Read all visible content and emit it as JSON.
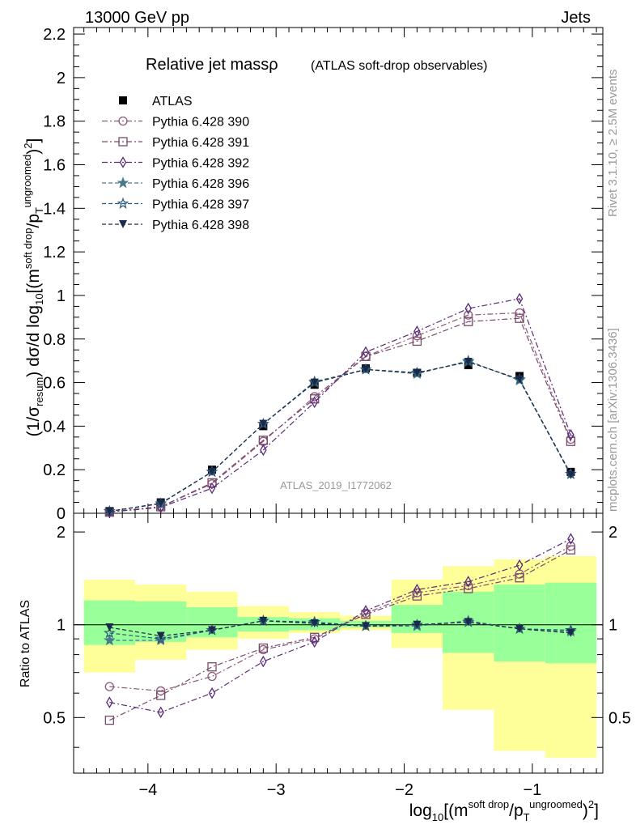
{
  "header": {
    "energy": "13000 GeV pp",
    "process": "Jets"
  },
  "side_labels": {
    "rivet": "Rivet 3.1.10, ≥ 2.5M events",
    "mcplots": "mcplots.cern.ch [arXiv:1306.3436]"
  },
  "analysis_id": "ATLAS_2019_I1772062",
  "chart_data": {
    "type": "line",
    "title": "Relative jet massρ",
    "subtitle": "(ATLAS soft-drop observables)",
    "xlim": [
      -4.58,
      -0.45
    ],
    "ylim": [
      0,
      2.23
    ],
    "ratio_ylim": [
      0.33,
      2.3
    ],
    "x_ticks": [
      -4,
      -3,
      -2,
      -1
    ],
    "x_tick_labels": [
      "−4",
      "−3",
      "−2",
      "−1"
    ],
    "y_ticks": [
      0,
      0.2,
      0.4,
      0.6,
      0.8,
      1,
      1.2,
      1.4,
      1.6,
      1.8,
      2,
      2.2
    ],
    "y_tick_labels": [
      "0",
      "0.2",
      "0.4",
      "0.6",
      "0.8",
      "1",
      "1.2",
      "1.4",
      "1.6",
      "1.8",
      "2",
      "2.2"
    ],
    "ratio_ticks": [
      0.5,
      1,
      2
    ],
    "ratio_tick_labels": [
      "0.5",
      "1",
      "2"
    ],
    "ratio_ylabel": "Ratio to ATLAS",
    "x": [
      -4.3,
      -3.9,
      -3.5,
      -3.1,
      -2.7,
      -2.3,
      -1.9,
      -1.5,
      -1.1,
      -0.7
    ],
    "bin_edges": [
      -4.5,
      -4.1,
      -3.7,
      -3.3,
      -2.9,
      -2.5,
      -2.1,
      -1.7,
      -1.3,
      -0.9,
      -0.5
    ],
    "band_yellow": [
      [
        0.7,
        1.4
      ],
      [
        0.77,
        1.35
      ],
      [
        0.83,
        1.28
      ],
      [
        0.9,
        1.15
      ],
      [
        0.94,
        1.1
      ],
      [
        0.96,
        1.07
      ],
      [
        0.84,
        1.4
      ],
      [
        0.53,
        1.55
      ],
      [
        0.39,
        1.63
      ],
      [
        0.37,
        1.67
      ]
    ],
    "band_green": [
      [
        0.86,
        1.2
      ],
      [
        0.88,
        1.19
      ],
      [
        0.91,
        1.14
      ],
      [
        0.95,
        1.06
      ],
      [
        0.96,
        1.05
      ],
      [
        0.98,
        1.03
      ],
      [
        0.94,
        1.16
      ],
      [
        0.81,
        1.28
      ],
      [
        0.76,
        1.35
      ],
      [
        0.75,
        1.37
      ]
    ],
    "legend": {
      "position": "top-left"
    },
    "series": [
      {
        "name": "ATLAS",
        "marker": "square",
        "color": "#000000",
        "values": [
          0.01,
          0.05,
          0.2,
          0.4,
          0.59,
          0.665,
          0.645,
          0.68,
          0.63,
          0.19
        ],
        "ratio": [
          1,
          1,
          1,
          1,
          1,
          1,
          1,
          1,
          1,
          1
        ]
      },
      {
        "name": "Pythia 6.428 390",
        "marker": "circle",
        "color": "#8a5a7a",
        "values": [
          0.006,
          0.03,
          0.135,
          0.33,
          0.535,
          0.72,
          0.815,
          0.91,
          0.92,
          0.34
        ],
        "ratio": [
          0.63,
          0.61,
          0.68,
          0.83,
          0.9,
          1.09,
          1.27,
          1.34,
          1.46,
          1.8
        ]
      },
      {
        "name": "Pythia 6.428 391",
        "marker": "square-open",
        "color": "#7a4a6a",
        "values": [
          0.005,
          0.03,
          0.14,
          0.335,
          0.525,
          0.72,
          0.79,
          0.88,
          0.895,
          0.33
        ],
        "ratio": [
          0.49,
          0.59,
          0.73,
          0.84,
          0.91,
          1.08,
          1.24,
          1.31,
          1.42,
          1.75
        ]
      },
      {
        "name": "Pythia 6.428 392",
        "marker": "diamond",
        "color": "#5a2a7a",
        "values": [
          0.006,
          0.027,
          0.115,
          0.29,
          0.51,
          0.74,
          0.835,
          0.94,
          0.985,
          0.36
        ],
        "ratio": [
          0.56,
          0.52,
          0.6,
          0.76,
          0.88,
          1.11,
          1.3,
          1.38,
          1.56,
          1.9
        ]
      },
      {
        "name": "Pythia 6.428 396",
        "marker": "star",
        "color": "#4a7a8a",
        "values": [
          0.009,
          0.045,
          0.19,
          0.41,
          0.605,
          0.66,
          0.64,
          0.7,
          0.61,
          0.18
        ],
        "ratio": [
          0.89,
          0.89,
          0.96,
          1.03,
          1.02,
          0.99,
          0.99,
          1.03,
          0.97,
          0.95
        ]
      },
      {
        "name": "Pythia 6.428 397",
        "marker": "star-open",
        "color": "#2a5a7a",
        "values": [
          0.009,
          0.044,
          0.19,
          0.41,
          0.6,
          0.66,
          0.645,
          0.695,
          0.615,
          0.18
        ],
        "ratio": [
          0.94,
          0.9,
          0.96,
          1.03,
          1.02,
          0.99,
          1.0,
          1.02,
          0.97,
          0.96
        ]
      },
      {
        "name": "Pythia 6.428 398",
        "marker": "tri-down",
        "color": "#1a2a4a",
        "values": [
          0.009,
          0.046,
          0.19,
          0.41,
          0.6,
          0.66,
          0.645,
          0.695,
          0.615,
          0.175
        ],
        "ratio": [
          0.98,
          0.92,
          0.96,
          1.03,
          1.01,
          0.99,
          1.0,
          1.02,
          0.97,
          0.94
        ]
      }
    ]
  }
}
